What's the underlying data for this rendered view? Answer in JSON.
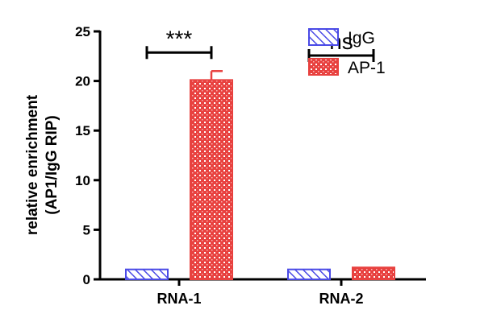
{
  "chart_data": {
    "type": "bar",
    "title": "",
    "xlabel": "",
    "ylabel": [
      "relative enrichment",
      "(AP1/IgG RIP)"
    ],
    "categories": [
      "RNA-1",
      "RNA-2"
    ],
    "ylim": [
      0,
      25
    ],
    "yticks": [
      "0",
      "5",
      "10",
      "15",
      "20",
      "25"
    ],
    "grid": false,
    "legend_position": "top-right",
    "series": [
      {
        "name": "IgG",
        "values": [
          1.0,
          1.0
        ],
        "errors": [
          0.0,
          0.0
        ],
        "color": "#4a4ae6",
        "pattern": "diagonal-hatch"
      },
      {
        "name": "AP-1",
        "values": [
          20.1,
          1.2
        ],
        "errors": [
          0.9,
          0.0
        ],
        "color": "#e8413f",
        "pattern": "crosshatch"
      }
    ],
    "annotations": [
      {
        "category": "RNA-1",
        "text": "***"
      },
      {
        "category": "RNA-2",
        "text": "ns"
      }
    ]
  }
}
